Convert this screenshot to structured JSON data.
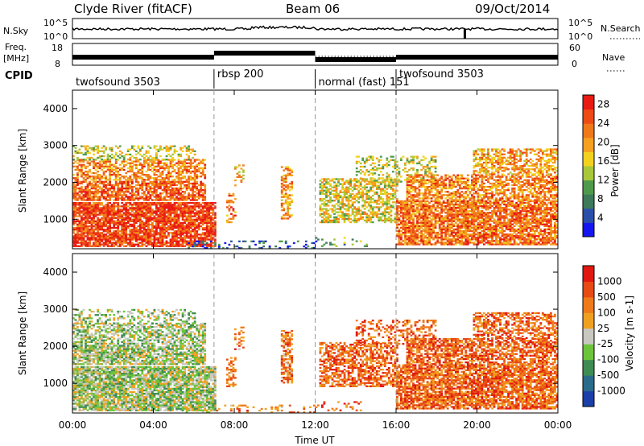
{
  "header": {
    "station": "Clyde River (fitACF)",
    "beam": "Beam 06",
    "date": "09/Oct/2014"
  },
  "panels": {
    "nsky": {
      "left_label": "N.Sky",
      "right_label": "N.Search",
      "ticks_left": [
        "10^5",
        "10^0"
      ],
      "ticks_right": [
        "10^5",
        "10^0"
      ]
    },
    "freq": {
      "left_label_1": "Freq.",
      "left_label_2": "[MHz]",
      "right_label": "Nave",
      "ticks_left": [
        "18",
        "8"
      ],
      "ticks_right": [
        "60",
        "0"
      ]
    },
    "cpid": {
      "label": "CPID"
    }
  },
  "cpid_segments": [
    {
      "name": "twofsound 3503",
      "start_hour": 0
    },
    {
      "name": "rbsp 200",
      "start_hour": 7
    },
    {
      "name": "normal (fast) 151",
      "start_hour": 12
    },
    {
      "name": "twofsound 3503",
      "start_hour": 16
    }
  ],
  "x_axis": {
    "label": "Time UT",
    "ticks": [
      "00:00",
      "04:00",
      "08:00",
      "12:00",
      "16:00",
      "20:00",
      "00:00"
    ],
    "range_hours": [
      0,
      24
    ]
  },
  "colors": {
    "power_scale": [
      "#1616f0",
      "#2a4faa",
      "#3d7a5a",
      "#4f9a4a",
      "#a8c83a",
      "#f2d21e",
      "#f5a020",
      "#f07818",
      "#ee4a16",
      "#e81a12"
    ],
    "velocity_scale": [
      "#1b3fa8",
      "#2a6b8c",
      "#3f8c52",
      "#6cc43a",
      "#c8c8c0",
      "#f0a020",
      "#ef7a1a",
      "#e84a14",
      "#e01810"
    ]
  },
  "chart_data": [
    {
      "type": "heatmap",
      "name": "Power",
      "ylabel": "Slant Range [km]",
      "xlabel": "Time UT",
      "ylim": [
        200,
        4500
      ],
      "yticks": [
        1000,
        2000,
        3000,
        4000
      ],
      "x_range_hours": [
        0,
        24
      ],
      "colorbar_label": "Power [dB]",
      "colorbar_ticks": [
        4,
        8,
        12,
        16,
        20,
        24,
        28
      ],
      "colorbar_range": [
        0,
        30
      ]
    },
    {
      "type": "heatmap",
      "name": "Velocity",
      "ylabel": "Slant Range [km]",
      "xlabel": "Time UT",
      "ylim": [
        200,
        4500
      ],
      "yticks": [
        1000,
        2000,
        3000,
        4000
      ],
      "x_range_hours": [
        0,
        24
      ],
      "colorbar_label": "Velocity [m s-1]",
      "colorbar_ticks": [
        "1000",
        "500",
        "100",
        "25",
        "-25",
        "-100",
        "-500",
        "-1000"
      ]
    }
  ]
}
